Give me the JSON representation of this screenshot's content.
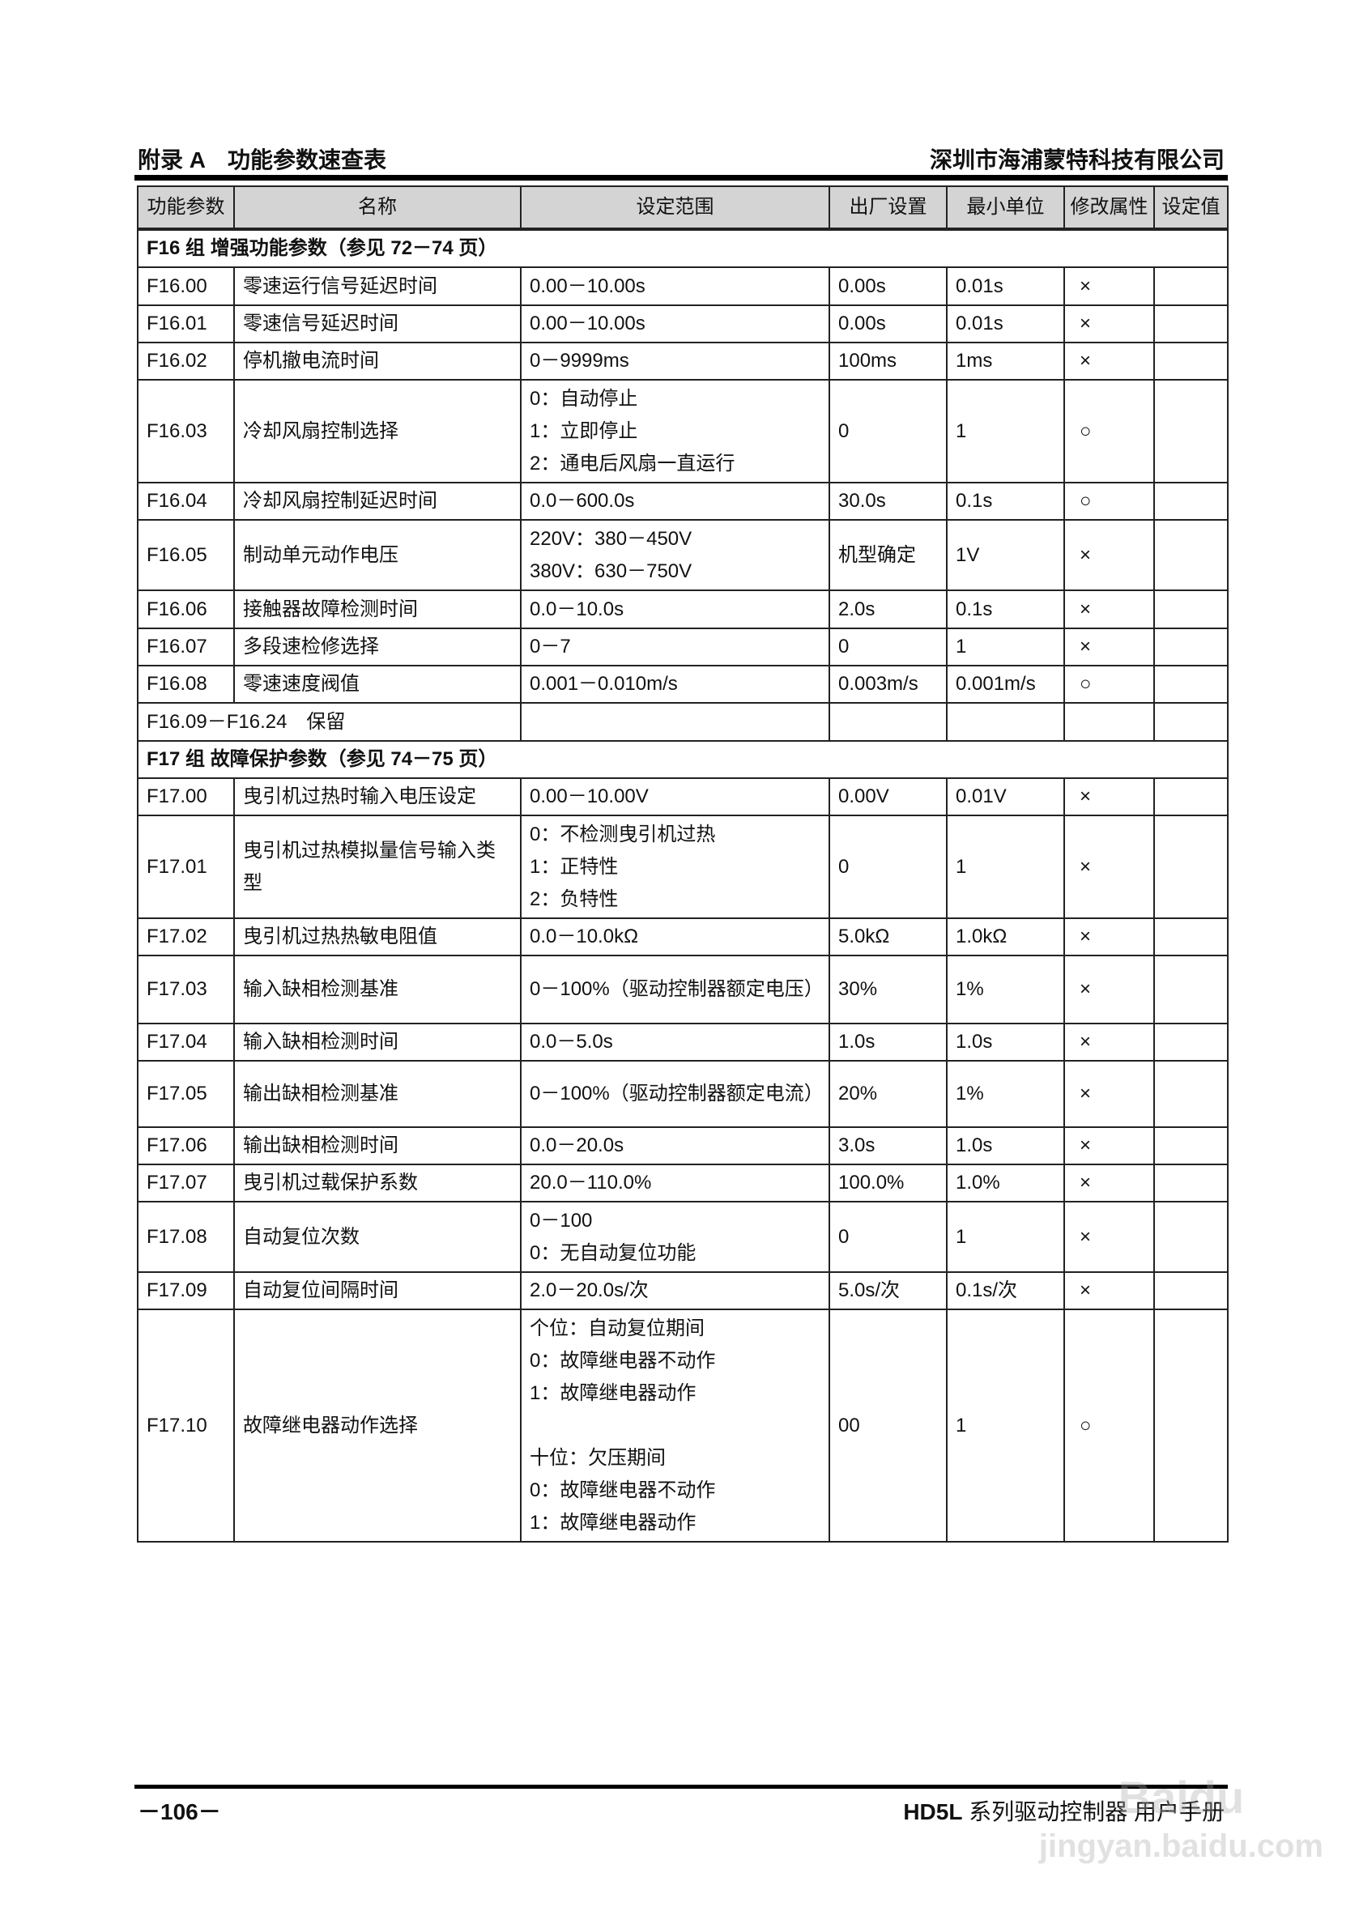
{
  "header": {
    "left": "附录 A　功能参数速查表",
    "right": "深圳市海浦蒙特科技有限公司"
  },
  "table": {
    "columns": [
      "功能参数",
      "名称",
      "设定范围",
      "出厂设置",
      "最小单位",
      "修改属性",
      "设定值"
    ],
    "rows": [
      {
        "group": "F16 组  增强功能参数（参见 72－74 页）"
      },
      {
        "code": "F16.00",
        "name": "零速运行信号延迟时间",
        "range": [
          "0.00－10.00s"
        ],
        "default": "0.00s",
        "unit": "0.01s",
        "attr": "×",
        "value": ""
      },
      {
        "code": "F16.01",
        "name": "零速信号延迟时间",
        "range": [
          "0.00－10.00s"
        ],
        "default": "0.00s",
        "unit": "0.01s",
        "attr": "×",
        "value": ""
      },
      {
        "code": "F16.02",
        "name": "停机撤电流时间",
        "range": [
          "0－9999ms"
        ],
        "default": "100ms",
        "unit": "1ms",
        "attr": "×",
        "value": ""
      },
      {
        "code": "F16.03",
        "name": "冷却风扇控制选择",
        "range": [
          "0：自动停止",
          "1：立即停止",
          "2：通电后风扇一直运行"
        ],
        "default": "0",
        "unit": "1",
        "attr": "○",
        "value": ""
      },
      {
        "code": "F16.04",
        "name": "冷却风扇控制延迟时间",
        "range": [
          "0.0－600.0s"
        ],
        "default": "30.0s",
        "unit": "0.1s",
        "attr": "○",
        "value": ""
      },
      {
        "code": "F16.05",
        "name": "制动单元动作电压",
        "range": [
          "220V：380－450V",
          "380V：630－750V"
        ],
        "default": "机型确定",
        "unit": "1V",
        "attr": "×",
        "value": ""
      },
      {
        "code": "F16.06",
        "name": "接触器故障检测时间",
        "range": [
          "0.0－10.0s"
        ],
        "default": "2.0s",
        "unit": "0.1s",
        "attr": "×",
        "value": ""
      },
      {
        "code": "F16.07",
        "name": "多段速检修选择",
        "range": [
          "0－7"
        ],
        "default": "0",
        "unit": "1",
        "attr": "×",
        "value": ""
      },
      {
        "code": "F16.08",
        "name": "零速速度阀值",
        "range": [
          "0.001－0.010m/s"
        ],
        "default": "0.003m/s",
        "unit": "0.001m/s",
        "attr": "○",
        "value": ""
      },
      {
        "reserved": "F16.09－F16.24　保留"
      },
      {
        "group": "F17 组  故障保护参数（参见 74－75 页）"
      },
      {
        "code": "F17.00",
        "name": "曳引机过热时输入电压设定",
        "range": [
          "0.00－10.00V"
        ],
        "default": "0.00V",
        "unit": "0.01V",
        "attr": "×",
        "value": ""
      },
      {
        "code": "F17.01",
        "name": "曳引机过热模拟量信号输入类型",
        "range": [
          "0：不检测曳引机过热",
          "1：正特性",
          "2：负特性"
        ],
        "default": "0",
        "unit": "1",
        "attr": "×",
        "value": ""
      },
      {
        "code": "F17.02",
        "name": "曳引机过热热敏电阻值",
        "range": [
          "0.0－10.0kΩ"
        ],
        "default": "5.0kΩ",
        "unit": "1.0kΩ",
        "attr": "×",
        "value": ""
      },
      {
        "code": "F17.03",
        "name": "输入缺相检测基准",
        "range": [
          "0－100%（驱动控制器额定电压）"
        ],
        "default": "30%",
        "unit": "1%",
        "attr": "×",
        "value": ""
      },
      {
        "code": "F17.04",
        "name": "输入缺相检测时间",
        "range": [
          "0.0－5.0s"
        ],
        "default": "1.0s",
        "unit": "1.0s",
        "attr": "×",
        "value": ""
      },
      {
        "code": "F17.05",
        "name": "输出缺相检测基准",
        "range": [
          "0－100%（驱动控制器额定电流）"
        ],
        "default": "20%",
        "unit": "1%",
        "attr": "×",
        "value": ""
      },
      {
        "code": "F17.06",
        "name": "输出缺相检测时间",
        "range": [
          "0.0－20.0s"
        ],
        "default": "3.0s",
        "unit": "1.0s",
        "attr": "×",
        "value": ""
      },
      {
        "code": "F17.07",
        "name": "曳引机过载保护系数",
        "range": [
          "20.0－110.0%"
        ],
        "default": "100.0%",
        "unit": "1.0%",
        "attr": "×",
        "value": ""
      },
      {
        "code": "F17.08",
        "name": "自动复位次数",
        "range": [
          "0－100",
          "0：无自动复位功能"
        ],
        "default": "0",
        "unit": "1",
        "attr": "×",
        "value": ""
      },
      {
        "code": "F17.09",
        "name": "自动复位间隔时间",
        "range": [
          "2.0－20.0s/次"
        ],
        "default": "5.0s/次",
        "unit": "0.1s/次",
        "attr": "×",
        "value": ""
      },
      {
        "code": "F17.10",
        "name": "故障继电器动作选择",
        "range": [
          "个位：自动复位期间",
          "0：故障继电器不动作",
          "1：故障继电器动作",
          "",
          "十位：欠压期间",
          "0：故障继电器不动作",
          "1：故障继电器动作"
        ],
        "default": "00",
        "unit": "1",
        "attr": "○",
        "value": ""
      }
    ]
  },
  "footer": {
    "page": "－106－",
    "product": "HD5L",
    "title": "系列驱动控制器  用户手册"
  },
  "watermark": {
    "logo": "Bai du 经验",
    "url": "jingyan.baidu.com"
  }
}
